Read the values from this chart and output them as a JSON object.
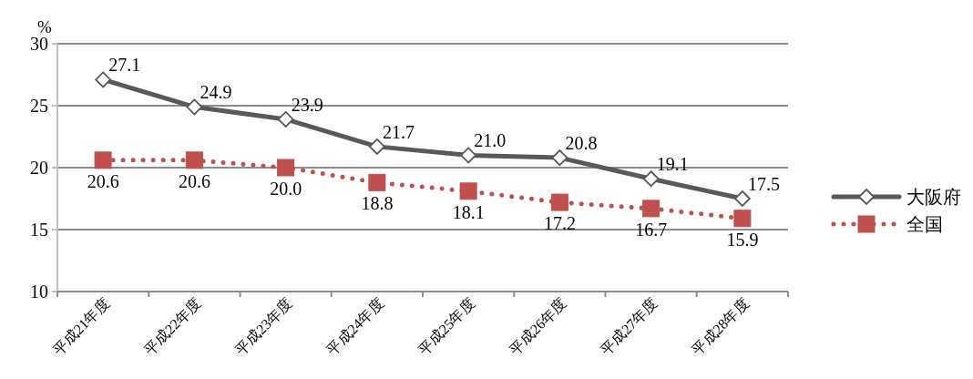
{
  "chart_data": {
    "type": "line",
    "ylabel": "%",
    "categories": [
      "平成21年度",
      "平成22年度",
      "平成23年度",
      "平成24年度",
      "平成25年度",
      "平成26年度",
      "平成27年度",
      "平成28年度"
    ],
    "series": [
      {
        "name": "大阪府",
        "color": "#595959",
        "marker": "diamond",
        "line_style": "solid",
        "values": [
          27.1,
          24.9,
          23.9,
          21.7,
          21.0,
          20.8,
          19.1,
          17.5
        ],
        "value_labels": [
          "27.1",
          "24.9",
          "23.9",
          "21.7",
          "21.0",
          "20.8",
          "19.1",
          "17.5"
        ]
      },
      {
        "name": "全国",
        "color": "#c0504d",
        "marker": "square",
        "line_style": "dotted",
        "values": [
          20.6,
          20.6,
          20.0,
          18.8,
          18.1,
          17.2,
          16.7,
          15.9
        ],
        "value_labels": [
          "20.6",
          "20.6",
          "20.0",
          "18.8",
          "18.1",
          "17.2",
          "16.7",
          "15.9"
        ]
      }
    ],
    "ylim": [
      10,
      30
    ],
    "yticks": [
      10,
      15,
      20,
      25,
      30
    ],
    "grid": "y",
    "legend": "right"
  }
}
